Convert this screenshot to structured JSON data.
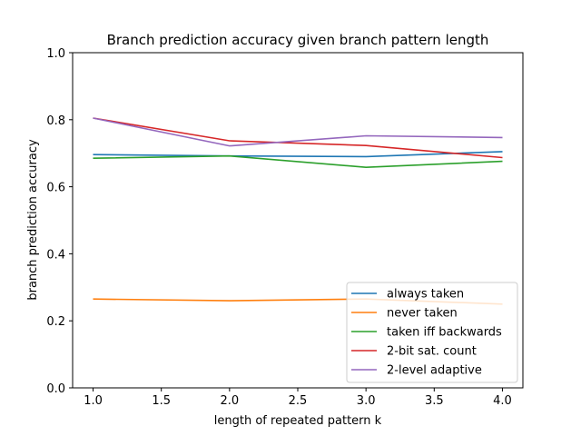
{
  "chart_data": {
    "type": "line",
    "title": "Branch prediction accuracy given branch pattern length",
    "xlabel": "length of repeated pattern k",
    "ylabel": "branch prediction accuracy",
    "x": [
      1.0,
      2.0,
      3.0,
      4.0
    ],
    "xlim": [
      0.85,
      4.15
    ],
    "ylim": [
      0.0,
      1.0
    ],
    "x_ticks": [
      1.0,
      1.5,
      2.0,
      2.5,
      3.0,
      3.5,
      4.0
    ],
    "x_tick_labels": [
      "1.0",
      "1.5",
      "2.0",
      "2.5",
      "3.0",
      "3.5",
      "4.0"
    ],
    "y_ticks": [
      0.0,
      0.2,
      0.4,
      0.6,
      0.8,
      1.0
    ],
    "y_tick_labels": [
      "0.0",
      "0.2",
      "0.4",
      "0.6",
      "0.8",
      "1.0"
    ],
    "grid": false,
    "legend_position": "lower-right",
    "series": [
      {
        "name": "always taken",
        "color": "#1f77b4",
        "values": [
          0.696,
          0.692,
          0.69,
          0.705
        ]
      },
      {
        "name": "never taken",
        "color": "#ff7f0e",
        "values": [
          0.265,
          0.26,
          0.265,
          0.25
        ]
      },
      {
        "name": "taken iff backwards",
        "color": "#2ca02c",
        "values": [
          0.685,
          0.692,
          0.658,
          0.676
        ]
      },
      {
        "name": "2-bit sat. count",
        "color": "#d62728",
        "values": [
          0.805,
          0.737,
          0.723,
          0.687
        ]
      },
      {
        "name": "2-level adaptive",
        "color": "#9467bd",
        "values": [
          0.805,
          0.722,
          0.752,
          0.747
        ]
      }
    ]
  }
}
